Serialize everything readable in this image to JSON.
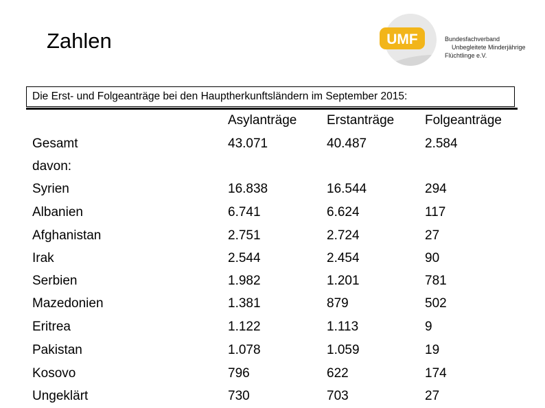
{
  "slide": {
    "title": "Zahlen",
    "subtitle": "Die Erst- und Folgeanträge bei den Hauptherkunftsländern im September 2015:"
  },
  "logo": {
    "badge_text": "UMF",
    "badge_color": "#f2b51a",
    "line1": "Bundesfachverband",
    "line2": "Unbegleitete Minderjährige",
    "line3": "Flüchtlinge e.V."
  },
  "table": {
    "headers": [
      "Asylanträge",
      "Erstanträge",
      "Folgeanträge"
    ],
    "rows": [
      {
        "label": "Gesamt",
        "values": [
          "43.071",
          "40.487",
          "2.584"
        ]
      },
      {
        "label": "davon:",
        "values": [
          "",
          "",
          ""
        ]
      },
      {
        "label": "Syrien",
        "values": [
          "16.838",
          "16.544",
          "294"
        ]
      },
      {
        "label": "Albanien",
        "values": [
          "6.741",
          "6.624",
          "117"
        ]
      },
      {
        "label": "Afghanistan",
        "values": [
          "2.751",
          "2.724",
          "27"
        ]
      },
      {
        "label": "Irak",
        "values": [
          "2.544",
          "2.454",
          "90"
        ]
      },
      {
        "label": "Serbien",
        "values": [
          "1.982",
          "1.201",
          "781"
        ]
      },
      {
        "label": "Mazedonien",
        "values": [
          "1.381",
          "879",
          "502"
        ]
      },
      {
        "label": "Eritrea",
        "values": [
          "1.122",
          "1.113",
          "9"
        ]
      },
      {
        "label": "Pakistan",
        "values": [
          "1.078",
          "1.059",
          "19"
        ]
      },
      {
        "label": "Kosovo",
        "values": [
          "796",
          "622",
          "174"
        ]
      },
      {
        "label": "Ungeklärt",
        "values": [
          "730",
          "703",
          "27"
        ]
      }
    ]
  }
}
